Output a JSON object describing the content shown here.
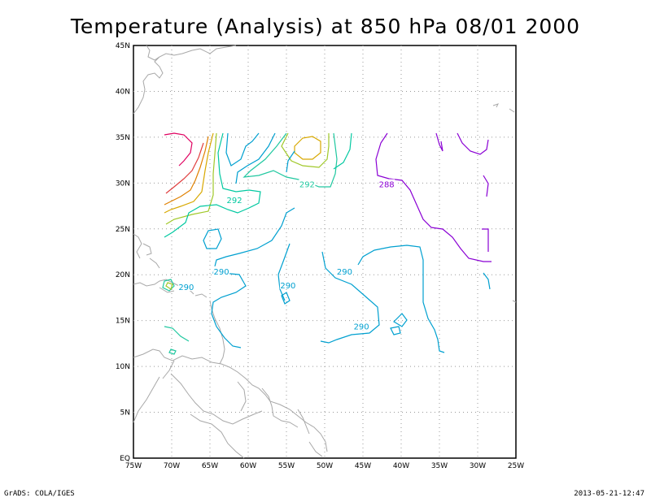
{
  "title": "Temperature (Analysis) at 850 hPa 08/01 2000",
  "footer": {
    "left": "GrADS: COLA/IGES",
    "right": "2013-05-21-12:47"
  },
  "axes": {
    "lon_labels": [
      "75W",
      "70W",
      "65W",
      "60W",
      "55W",
      "50W",
      "45W",
      "40W",
      "35W",
      "30W",
      "25W"
    ],
    "lat_labels": [
      "EQ",
      "5N",
      "10N",
      "15N",
      "20N",
      "25N",
      "30N",
      "35N",
      "40N",
      "45N"
    ]
  },
  "colors": {
    "coast": "#a8a8a8",
    "c286": "#8a00d4",
    "c288": "#6a00c8",
    "c290": "#00a0d0",
    "c291": "#00c8a0",
    "c292": "#20c8a0",
    "c294": "#a0c828",
    "c296": "#e0a000",
    "c298": "#e05000",
    "c300": "#e00060"
  },
  "contour_labels": [
    {
      "text": "292",
      "lon": -61.8,
      "lat": 28.1,
      "color": "#00c8a0"
    },
    {
      "text": "292",
      "lon": -52.3,
      "lat": 29.8,
      "color": "#20c8a0"
    },
    {
      "text": "288",
      "lon": -41.9,
      "lat": 29.8,
      "color": "#8a00d4"
    },
    {
      "text": "290",
      "lon": -63.5,
      "lat": 20.3,
      "color": "#00a0d0"
    },
    {
      "text": "290",
      "lon": -68.1,
      "lat": 18.6,
      "color": "#00a0d0"
    },
    {
      "text": "290",
      "lon": -54.8,
      "lat": 18.8,
      "color": "#00a0d0"
    },
    {
      "text": "290",
      "lon": -47.4,
      "lat": 20.3,
      "color": "#00a0d0"
    },
    {
      "text": "290",
      "lon": -45.2,
      "lat": 14.3,
      "color": "#00a0d0"
    }
  ]
}
